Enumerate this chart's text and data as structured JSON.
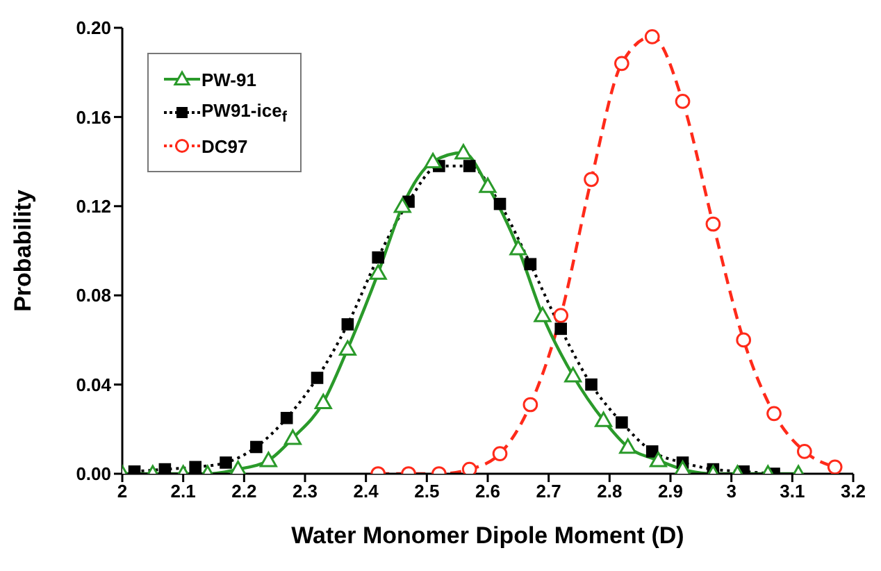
{
  "chart_data": {
    "type": "line",
    "xlabel": "Water Monomer Dipole Moment (D)",
    "ylabel": "Probability",
    "xlim": [
      2,
      3.2
    ],
    "xticks": [
      2,
      2.1,
      2.2,
      2.3,
      2.4,
      2.5,
      2.6,
      2.7,
      2.8,
      2.9,
      3,
      3.1,
      3.2
    ],
    "ylim": [
      0,
      0.2
    ],
    "yticks": [
      {
        "value": 0,
        "label": "0.00"
      },
      {
        "value": 0.04,
        "label": "0.04"
      },
      {
        "value": 0.08,
        "label": "0.08"
      },
      {
        "value": 0.12,
        "label": "0.12"
      },
      {
        "value": 0.16,
        "label": "0.16"
      },
      {
        "value": 0.2,
        "label": "0.20"
      }
    ],
    "grid": false,
    "legend": "top left",
    "series": [
      {
        "name": "PW-91",
        "color": "#2a9a2a",
        "marker": "triangle",
        "line_style": "solid",
        "x": [
          2.0,
          2.05,
          2.1,
          2.14,
          2.19,
          2.24,
          2.28,
          2.33,
          2.37,
          2.42,
          2.46,
          2.51,
          2.56,
          2.6,
          2.65,
          2.69,
          2.74,
          2.79,
          2.83,
          2.88,
          2.92,
          2.97,
          3.01,
          3.06,
          3.11
        ],
        "values": [
          0,
          0,
          0,
          0,
          0.002,
          0.006,
          0.016,
          0.032,
          0.056,
          0.09,
          0.12,
          0.14,
          0.144,
          0.129,
          0.101,
          0.071,
          0.044,
          0.024,
          0.012,
          0.006,
          0.002,
          0,
          0,
          0,
          0
        ]
      },
      {
        "name": "PW91-ice$_{f}$",
        "color": "#000000",
        "marker": "square",
        "line_style": "dotted",
        "x": [
          2.02,
          2.07,
          2.12,
          2.17,
          2.22,
          2.27,
          2.32,
          2.37,
          2.42,
          2.47,
          2.52,
          2.57,
          2.62,
          2.67,
          2.72,
          2.77,
          2.82,
          2.87,
          2.92,
          2.97,
          3.02,
          3.07
        ],
        "values": [
          0.001,
          0.002,
          0.003,
          0.005,
          0.012,
          0.025,
          0.043,
          0.067,
          0.097,
          0.122,
          0.138,
          0.138,
          0.121,
          0.094,
          0.065,
          0.04,
          0.023,
          0.01,
          0.005,
          0.002,
          0.001,
          0
        ]
      },
      {
        "name": "DC97",
        "color": "#ff2a1a",
        "marker": "circle",
        "line_style": "dashed",
        "x": [
          2.42,
          2.47,
          2.52,
          2.57,
          2.62,
          2.67,
          2.72,
          2.77,
          2.82,
          2.87,
          2.92,
          2.97,
          3.02,
          3.07,
          3.12,
          3.17
        ],
        "values": [
          0,
          0,
          0,
          0.002,
          0.009,
          0.031,
          0.071,
          0.132,
          0.184,
          0.196,
          0.167,
          0.112,
          0.06,
          0.027,
          0.01,
          0.003
        ]
      }
    ]
  }
}
